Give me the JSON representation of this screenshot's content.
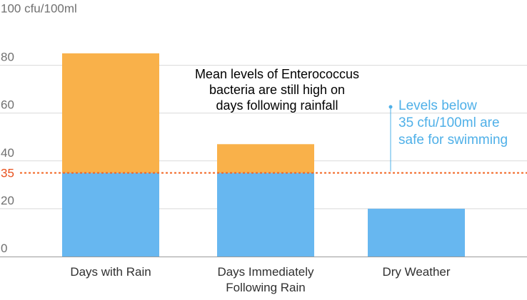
{
  "chart_data": {
    "type": "bar",
    "stacked": true,
    "y_unit_label": "100 cfu/100ml",
    "yticks": [
      0,
      20,
      40,
      60,
      80
    ],
    "ylim": [
      0,
      100
    ],
    "categories": [
      [
        "Days with Rain"
      ],
      [
        "Days Immediately",
        "Following Rain"
      ],
      [
        "Dry Weather"
      ]
    ],
    "totals": [
      85,
      47,
      20
    ],
    "threshold": {
      "value": 35,
      "label": "35"
    },
    "series": [
      {
        "name": "below-threshold",
        "color": "#67b7f0"
      },
      {
        "name": "above-threshold",
        "color": "#f9b14a"
      }
    ],
    "title": [
      "Mean levels of Enterococcus",
      "bacteria are still high on",
      "days following rainfall"
    ],
    "annotation": [
      "Levels below",
      "35 cfu/100ml are",
      "safe for swimming"
    ],
    "colors": {
      "grid": "#d9d9d9",
      "axis": "#9a9a9a",
      "threshold_line": "#f26522",
      "annotation": "#4fb0e8"
    }
  }
}
